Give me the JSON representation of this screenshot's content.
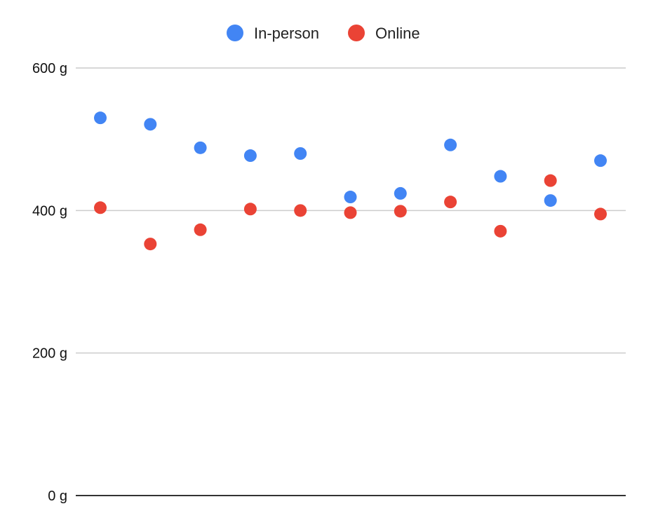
{
  "chart_data": {
    "type": "scatter",
    "title": "",
    "xlabel": "",
    "ylabel": "",
    "ylim": [
      0,
      600
    ],
    "yticks": [
      0,
      200,
      400,
      600
    ],
    "ytick_labels": [
      "0 g",
      "200 g",
      "400 g",
      "600 g"
    ],
    "grid": true,
    "legend_position": "top-center",
    "x": [
      1,
      2,
      3,
      4,
      5,
      6,
      7,
      8,
      9,
      10,
      11
    ],
    "series": [
      {
        "name": "In-person",
        "color": "#4285F4",
        "values": [
          530,
          521,
          488,
          477,
          480,
          419,
          424,
          492,
          448,
          414,
          470
        ]
      },
      {
        "name": "Online",
        "color": "#EA4335",
        "values": [
          404,
          353,
          373,
          402,
          400,
          397,
          399,
          412,
          371,
          442,
          395
        ]
      }
    ]
  }
}
